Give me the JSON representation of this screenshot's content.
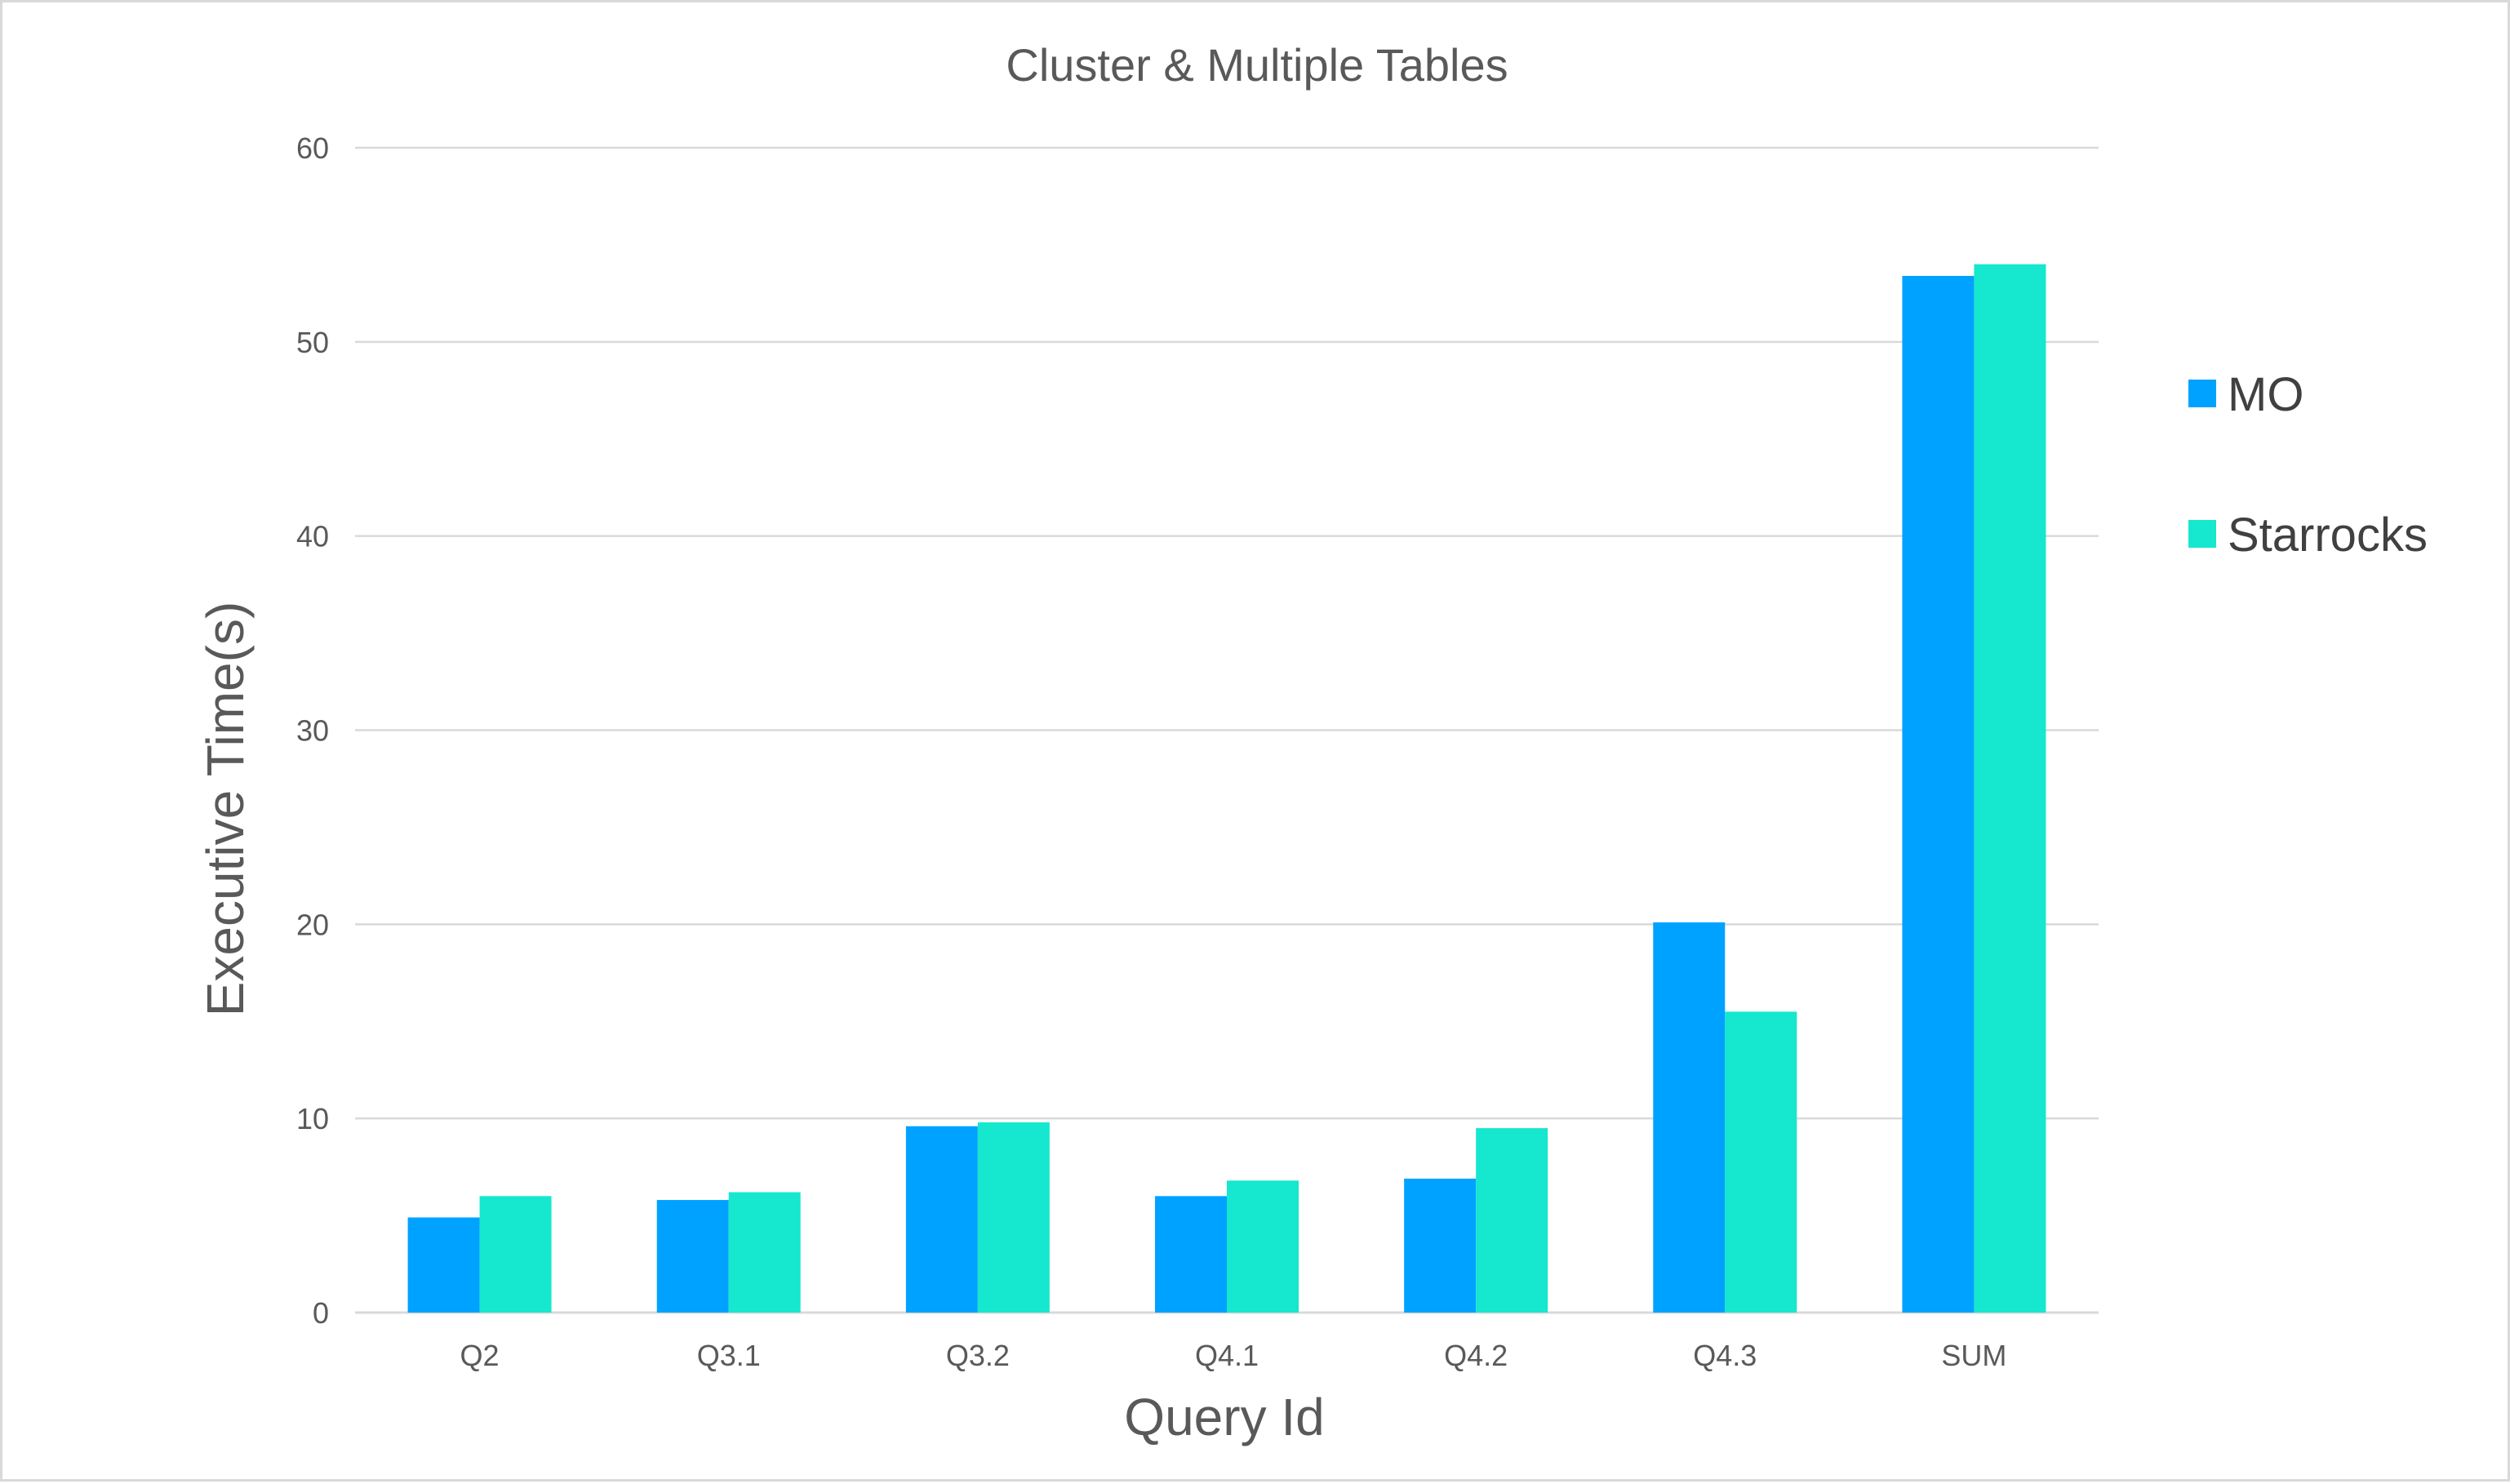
{
  "chart_data": {
    "type": "bar",
    "title": "Cluster & Multiple Tables",
    "xlabel": "Query Id",
    "ylabel": "Executive Time(s)",
    "ylim": [
      0,
      60
    ],
    "yticks": [
      0,
      10,
      20,
      30,
      40,
      50,
      60
    ],
    "grid": true,
    "legend_position": "right",
    "categories": [
      "Q2",
      "Q3.1",
      "Q3.2",
      "Q4.1",
      "Q4.2",
      "Q4.3",
      "SUM"
    ],
    "series": [
      {
        "name": "MO",
        "color": "#00a2ff",
        "values": [
          4.9,
          5.8,
          9.6,
          6.0,
          6.9,
          20.1,
          53.4
        ]
      },
      {
        "name": "Starrocks",
        "color": "#16e7cf",
        "values": [
          6.0,
          6.2,
          9.8,
          6.8,
          9.5,
          15.5,
          54.0
        ]
      }
    ]
  }
}
